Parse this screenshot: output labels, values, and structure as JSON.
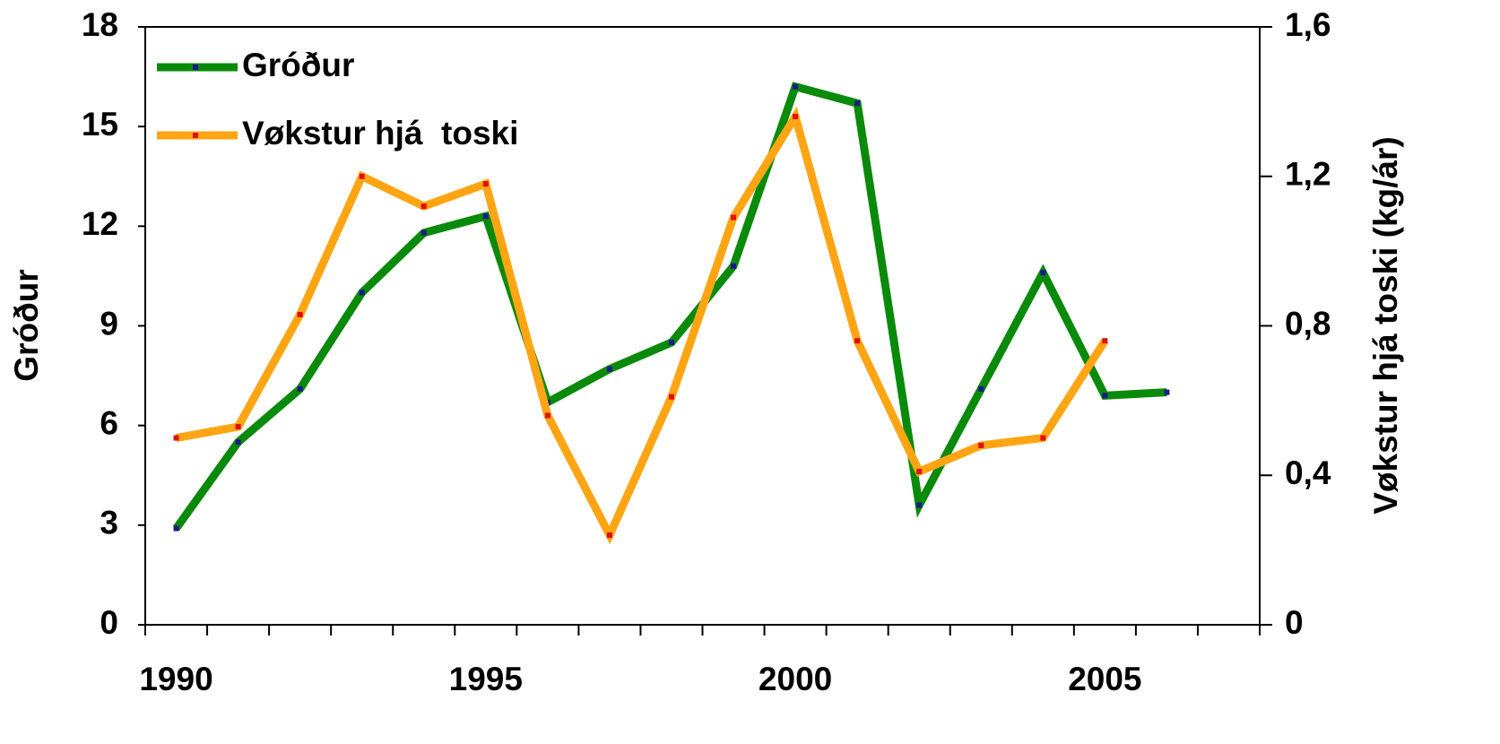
{
  "chart_data": {
    "type": "line",
    "categories": [
      "1990",
      null,
      null,
      null,
      null,
      "1995",
      null,
      null,
      null,
      null,
      "2000",
      null,
      null,
      null,
      null,
      "2005",
      null,
      null
    ],
    "series": [
      {
        "name": "Gróður",
        "color": "#0a8a0a",
        "marker_color": "#1a1a8c",
        "axis": "y",
        "values": [
          2.9,
          5.5,
          7.1,
          10.0,
          11.8,
          12.3,
          6.7,
          7.7,
          8.5,
          10.8,
          16.2,
          15.7,
          3.6,
          7.1,
          10.6,
          6.9,
          7.0,
          null
        ]
      },
      {
        "name": "Vøkstur hjá  toski",
        "color": "#ffa514",
        "marker_color": "#e01010",
        "axis": "y2",
        "values": [
          0.5,
          0.53,
          0.83,
          1.2,
          1.12,
          1.18,
          0.56,
          0.24,
          0.61,
          1.09,
          1.36,
          0.76,
          0.41,
          0.48,
          0.5,
          0.76,
          null,
          null
        ]
      }
    ],
    "y_label": "Gróður",
    "y2_label": "Vøkstur hjá toski (kg/ár)",
    "ylim": [
      0,
      18
    ],
    "yticks": [
      0,
      3,
      6,
      9,
      12,
      15,
      18
    ],
    "y2lim": [
      0,
      1.6
    ],
    "y2ticks": [
      0,
      {
        "value": 0.4,
        "label": "0,4"
      },
      {
        "value": 0.8,
        "label": "0,8"
      },
      {
        "value": 1.2,
        "label": "1,2"
      },
      {
        "value": 1.6,
        "label": "1,6"
      }
    ],
    "legend": "upper left",
    "grid": false
  }
}
